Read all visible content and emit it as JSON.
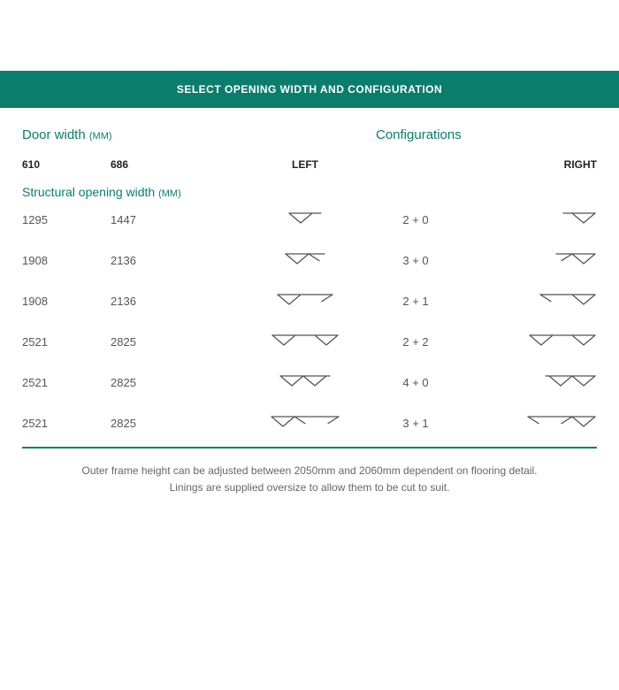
{
  "banner": "SELECT OPENING WIDTH AND CONFIGURATION",
  "headers": {
    "doorWidth": "Door width",
    "unitSuffix": "(MM)",
    "configurations": "Configurations",
    "col610": "610",
    "col686": "686",
    "left": "LEFT",
    "right": "RIGHT",
    "structural": "Structural opening width"
  },
  "colors": {
    "teal": "#0a7d6c",
    "iconStroke": "#555555",
    "background": "#ffffff",
    "text": "#555555"
  },
  "iconMaxWidth": 120,
  "rows": [
    {
      "w610": "1295",
      "w686": "1447",
      "config": "2 + 0",
      "left": {
        "n": 2,
        "tail": 0
      },
      "right": {
        "n": 2,
        "tail": 0
      }
    },
    {
      "w610": "1908",
      "w686": "2136",
      "config": "3 + 0",
      "left": {
        "n": 3,
        "tail": 0
      },
      "right": {
        "n": 3,
        "tail": 0
      }
    },
    {
      "w610": "1908",
      "w686": "2136",
      "config": "2 + 1",
      "left": {
        "n": 2,
        "tail": 1
      },
      "right": {
        "n": 2,
        "tail": 1
      }
    },
    {
      "w610": "2521",
      "w686": "2825",
      "config": "2 + 2",
      "left": {
        "n": 2,
        "tail": 2
      },
      "right": {
        "n": 2,
        "tail": 2
      }
    },
    {
      "w610": "2521",
      "w686": "2825",
      "config": "4 + 0",
      "left": {
        "n": 4,
        "tail": 0
      },
      "right": {
        "n": 4,
        "tail": 0
      }
    },
    {
      "w610": "2521",
      "w686": "2825",
      "config": "3 + 1",
      "left": {
        "n": 3,
        "tail": 1
      },
      "right": {
        "n": 3,
        "tail": 1
      }
    }
  ],
  "footer": {
    "line1": "Outer frame height can be adjusted between 2050mm and 2060mm dependent on flooring detail.",
    "line2": "Linings are supplied oversize to allow them to be cut to suit."
  }
}
